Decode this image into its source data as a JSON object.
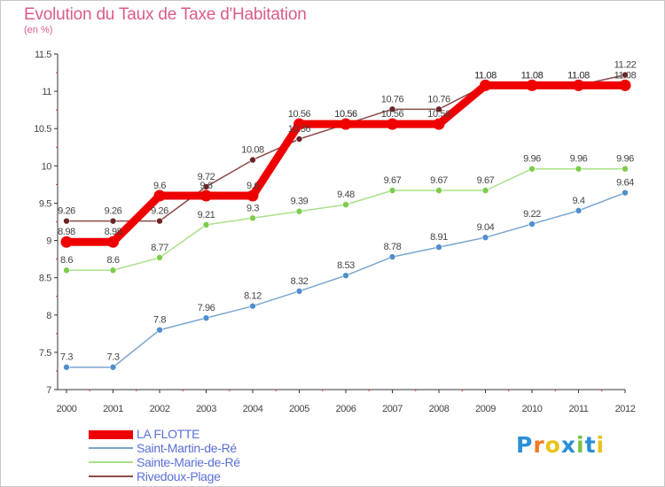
{
  "title": "Evolution du Taux de Taxe d'Habitation",
  "subtitle": "(en %)",
  "brand": {
    "letters": [
      "P",
      "r",
      "o",
      "x",
      "i",
      "t",
      "i"
    ],
    "colors": [
      "#2b8fd6",
      "#f07b22",
      "#e8c21a",
      "#2b8fd6",
      "#7ac143",
      "#2b8fd6",
      "#e8c21a"
    ]
  },
  "chart_data": {
    "type": "line",
    "x": [
      2000,
      2001,
      2002,
      2003,
      2004,
      2005,
      2006,
      2007,
      2008,
      2009,
      2010,
      2011,
      2012
    ],
    "ylim": [
      7,
      11.5
    ],
    "yticks": [
      "7",
      "7.5",
      "8",
      "8.5",
      "9",
      "9.5",
      "10",
      "10.5",
      "11",
      "11.5"
    ],
    "grid": false,
    "legend": "bottom-left",
    "series": [
      {
        "name": "LA FLOTTE",
        "color": "#ee0000",
        "values": [
          8.98,
          8.98,
          9.6,
          9.6,
          9.6,
          10.56,
          10.56,
          10.56,
          10.56,
          11.08,
          11.08,
          11.08,
          11.08
        ],
        "labels": [
          "8.98",
          "8.98",
          "9.6",
          "9.6",
          "9.6",
          "10.56",
          "10.56",
          "10.56",
          "10.56",
          "11.08",
          "11.08",
          "11.08",
          "11.08"
        ]
      },
      {
        "name": "Saint-Martin-de-Ré",
        "color": "#7aa6cf",
        "point_color": "#4f8fce",
        "values": [
          7.3,
          7.3,
          7.8,
          7.96,
          8.12,
          8.32,
          8.53,
          8.78,
          8.91,
          9.04,
          9.22,
          9.4,
          9.64
        ],
        "labels": [
          "7.3",
          "7.3",
          "7.8",
          "7.96",
          "8.12",
          "8.32",
          "8.53",
          "8.78",
          "8.91",
          "9.04",
          "9.22",
          "9.4",
          "9.64"
        ]
      },
      {
        "name": "Sainte-Marie-de-Ré",
        "color": "#a8e08a",
        "point_color": "#7dcc4a",
        "values": [
          8.6,
          8.6,
          8.77,
          9.21,
          9.3,
          9.39,
          9.48,
          9.67,
          9.67,
          9.67,
          9.96,
          9.96,
          9.96
        ],
        "labels": [
          "8.6",
          "8.6",
          "8.77",
          "9.21",
          "9.3",
          "9.39",
          "9.48",
          "9.67",
          "9.67",
          "9.67",
          "9.96",
          "9.96",
          "9.96"
        ]
      },
      {
        "name": "Rivedoux-Plage",
        "color": "#8b4a4a",
        "point_color": "#6b2424",
        "values": [
          9.26,
          9.26,
          9.26,
          9.72,
          10.08,
          10.36,
          10.56,
          10.76,
          10.76,
          11.08,
          11.08,
          11.08,
          11.22
        ],
        "labels": [
          "9.26",
          "9.26",
          "9.26",
          "9.72",
          "10.08",
          "10.36",
          "10.56",
          "10.76",
          "10.76",
          "11.08",
          "11.08",
          "11.08",
          "11.22"
        ]
      }
    ]
  }
}
